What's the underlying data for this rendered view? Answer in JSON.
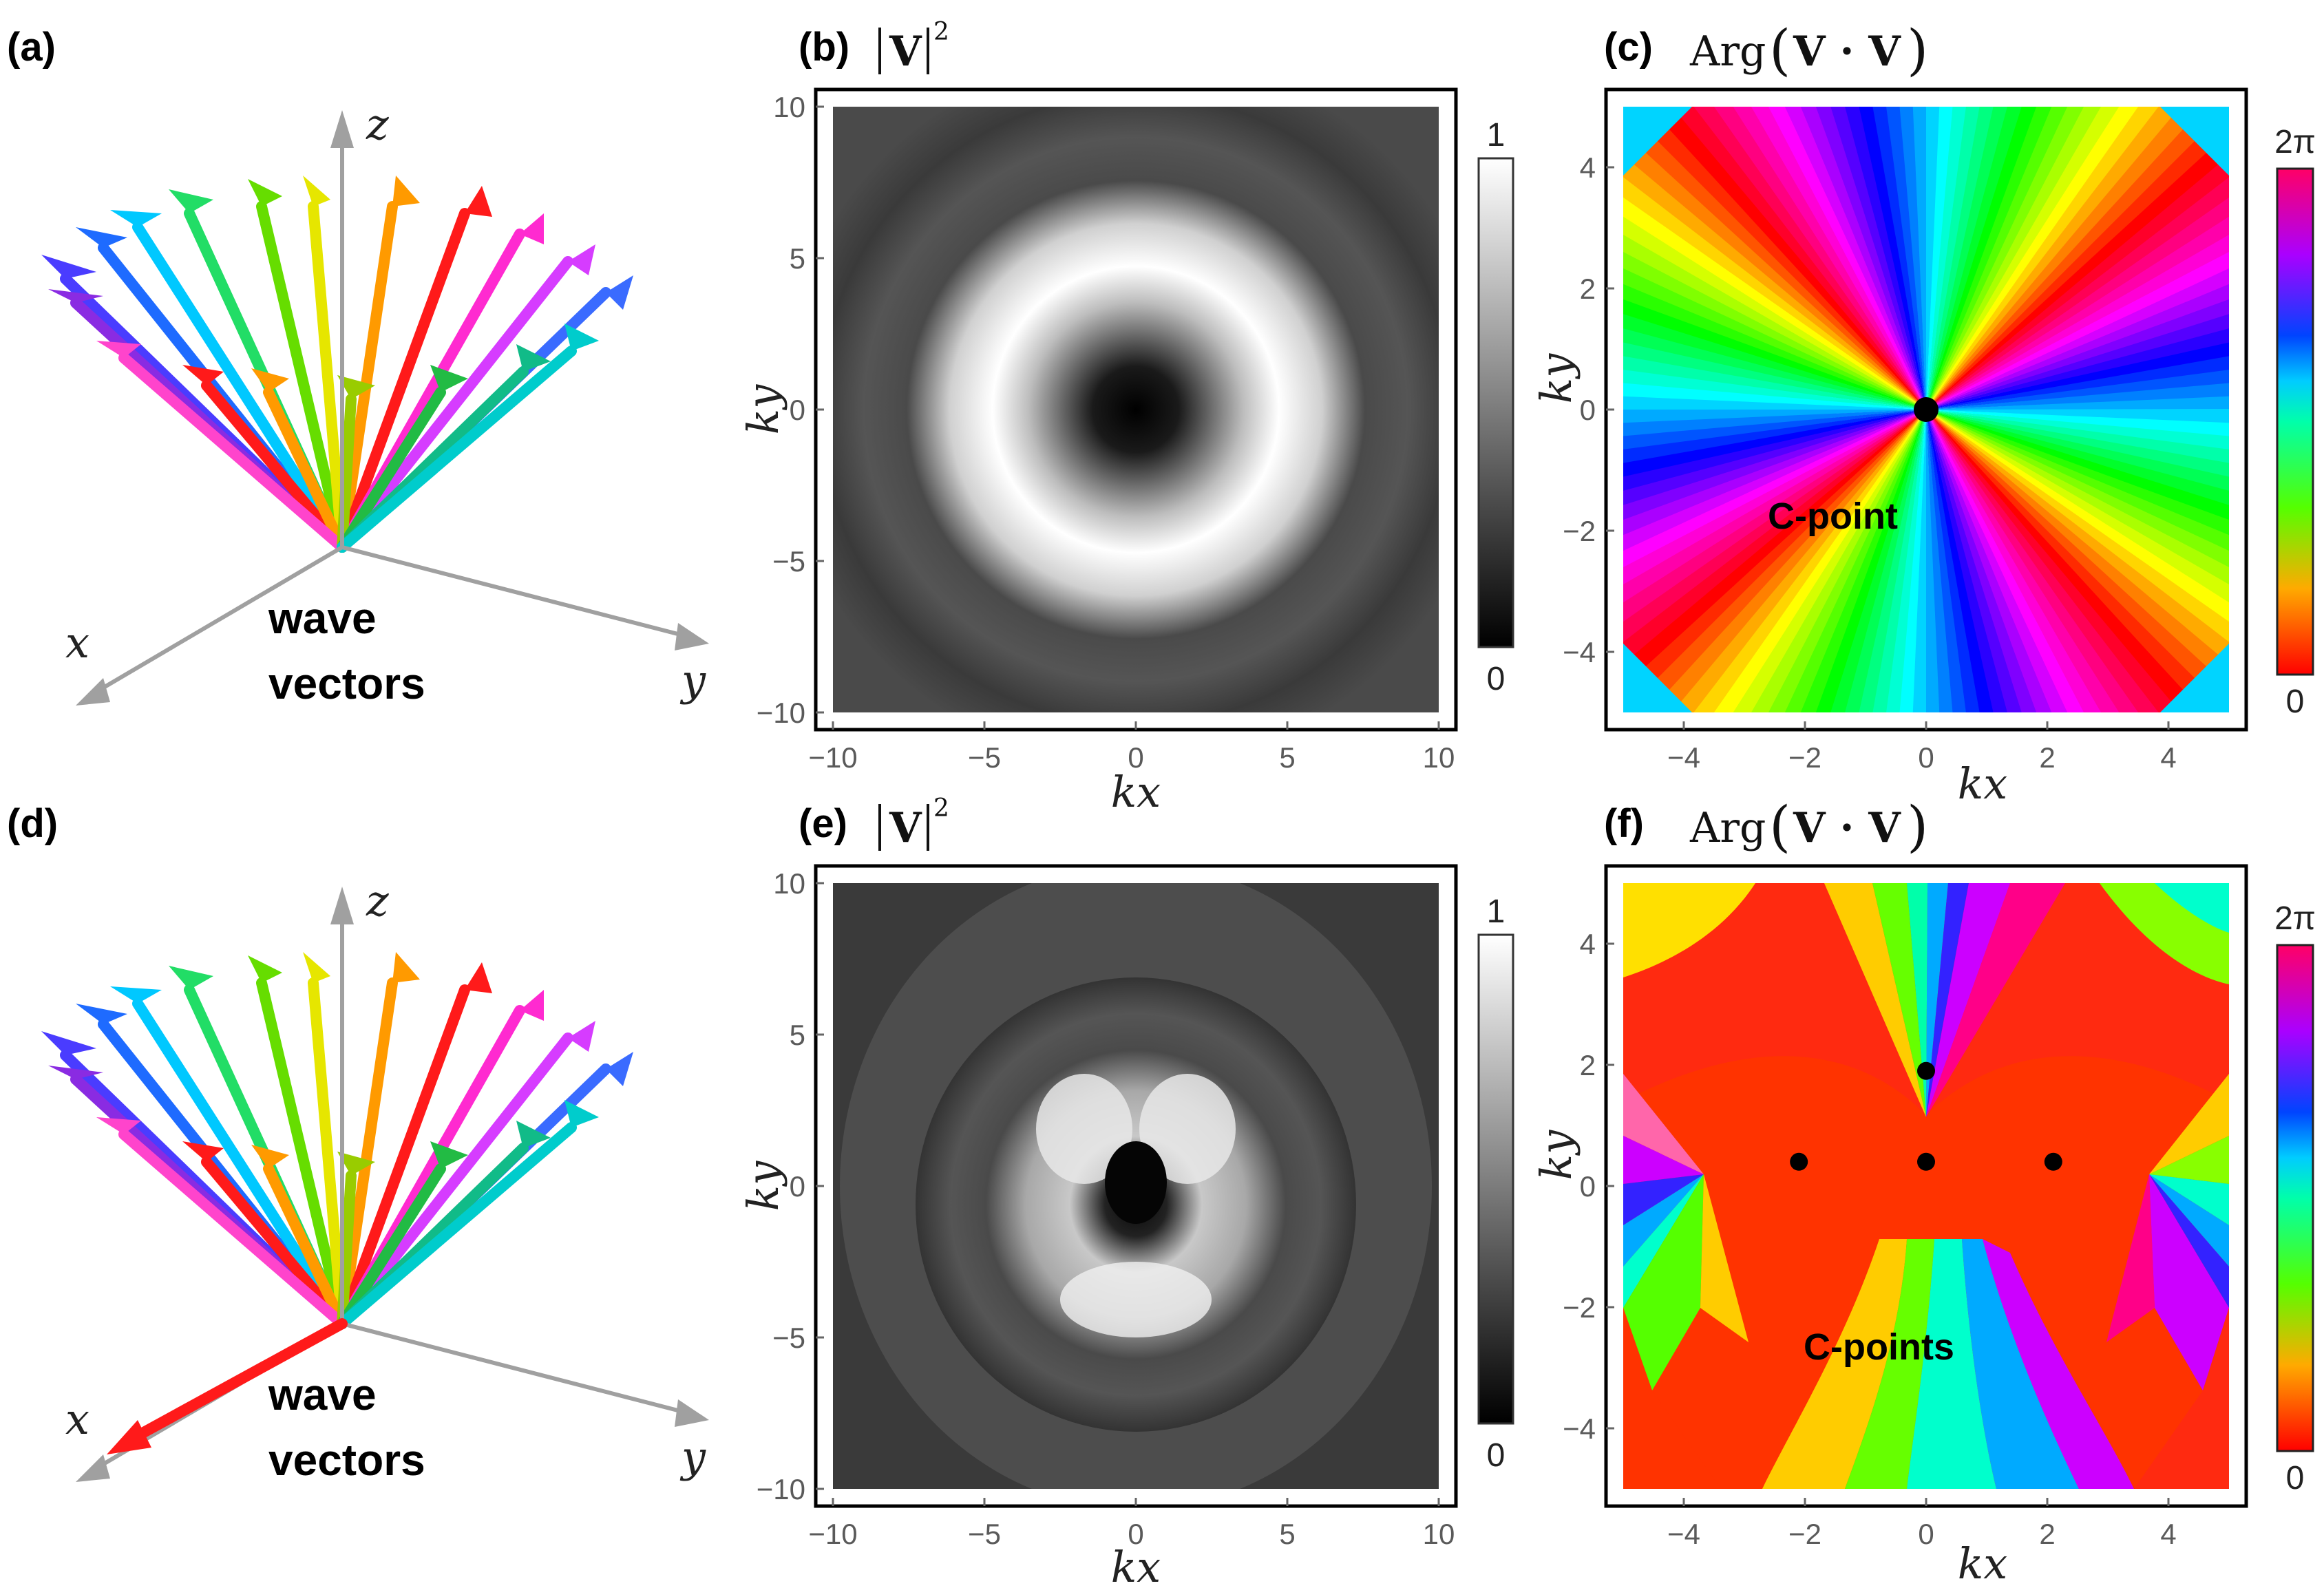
{
  "panels": {
    "a": {
      "label": "(a)",
      "axes": {
        "x": "x",
        "y": "y",
        "z": "z"
      },
      "caption_line1": "wave",
      "caption_line2": "vectors"
    },
    "b": {
      "label": "(b)",
      "title_symbol": "V",
      "title_exp": "2",
      "xlabel": "kx",
      "ylabel": "ky",
      "xticks": [
        "−10",
        "−5",
        "0",
        "5",
        "10"
      ],
      "yticks": [
        "10",
        "5",
        "0",
        "−5",
        "−10"
      ],
      "colorbar": {
        "top": "1",
        "bottom": "0"
      }
    },
    "c": {
      "label": "(c)",
      "title_prefix": "Arg",
      "title_symbol": "V · V",
      "xlabel": "kx",
      "ylabel": "ky",
      "xticks": [
        "−4",
        "−2",
        "0",
        "2",
        "4"
      ],
      "yticks": [
        "4",
        "2",
        "0",
        "−2",
        "−4"
      ],
      "colorbar": {
        "top": "2π",
        "bottom": "0"
      },
      "annotation": "C-point"
    },
    "d": {
      "label": "(d)",
      "axes": {
        "x": "x",
        "y": "y",
        "z": "z"
      },
      "caption_line1": "wave",
      "caption_line2": "vectors"
    },
    "e": {
      "label": "(e)",
      "title_symbol": "V",
      "title_exp": "2",
      "xlabel": "kx",
      "ylabel": "ky",
      "xticks": [
        "−10",
        "−5",
        "0",
        "5",
        "10"
      ],
      "yticks": [
        "10",
        "5",
        "0",
        "−5",
        "−10"
      ],
      "colorbar": {
        "top": "1",
        "bottom": "0"
      }
    },
    "f": {
      "label": "(f)",
      "title_prefix": "Arg",
      "title_symbol": "V · V",
      "xlabel": "kx",
      "ylabel": "ky",
      "xticks": [
        "−4",
        "−2",
        "0",
        "2",
        "4"
      ],
      "yticks": [
        "4",
        "2",
        "0",
        "−2",
        "−4"
      ],
      "colorbar": {
        "top": "2π",
        "bottom": "0"
      },
      "annotation": "C-points"
    }
  },
  "c_points": {
    "c": [
      {
        "kx": 0,
        "ky": 0
      }
    ],
    "f": [
      {
        "kx": 0,
        "ky": 1.9
      },
      {
        "kx": -2.1,
        "ky": 0.4
      },
      {
        "kx": 0,
        "ky": 0.4
      },
      {
        "kx": 2.1,
        "ky": 0.4
      }
    ]
  },
  "colors": {
    "marker": "#000000",
    "frame": "#000000",
    "tick": "#5a5a5a"
  }
}
